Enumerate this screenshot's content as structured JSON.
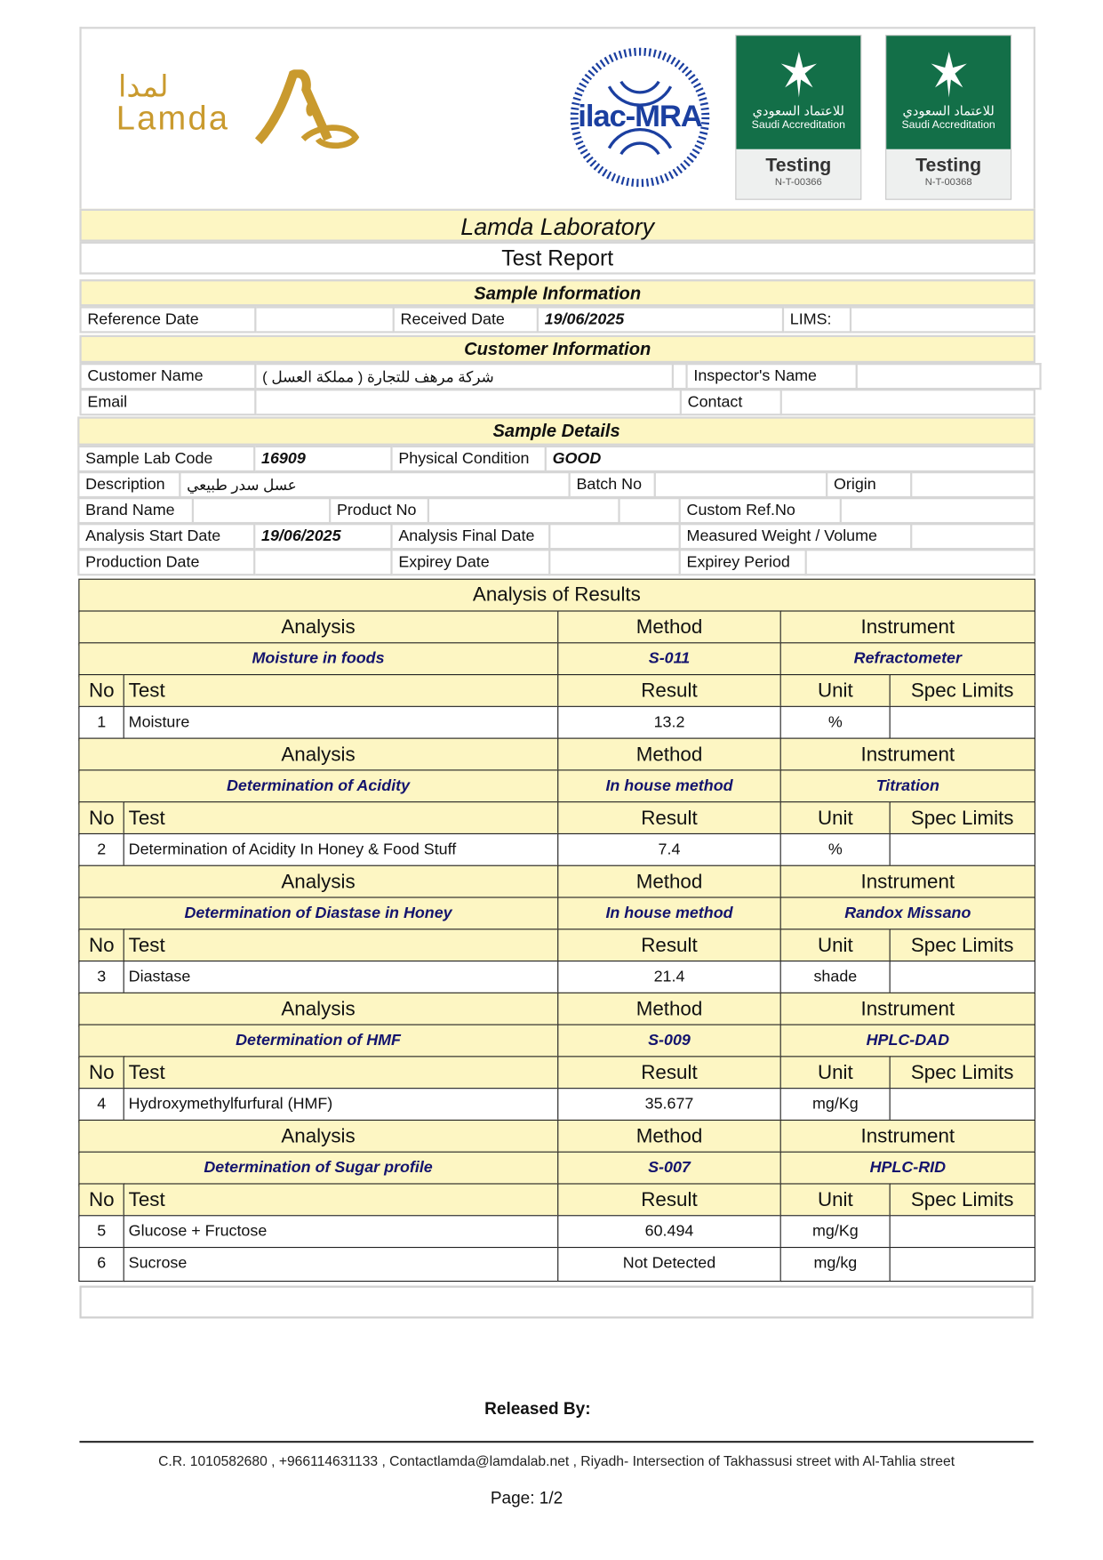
{
  "header": {
    "logo_text_en": "Lamda",
    "logo_text_ar": "لمدا",
    "ilac_text": "ilac-MRA",
    "badges": [
      {
        "arabic": "للاعتماد السعودي",
        "english": "Saudi Accreditation",
        "type": "Testing",
        "code": "N-T-00366"
      },
      {
        "arabic": "للاعتماد السعودي",
        "english": "Saudi Accreditation",
        "type": "Testing",
        "code": "N-T-00368"
      }
    ],
    "title": "Lamda Laboratory",
    "subtitle": "Test Report"
  },
  "colors": {
    "band": "#fdf6c3",
    "subject_text": "#14146e",
    "badge_green": "#136f48",
    "logo_gold": "#c99a2e"
  },
  "sample_information": {
    "heading": "Sample Information",
    "rows": [
      [
        "Reference Date",
        "",
        "Received Date",
        "19/06/2025",
        "LIMS:",
        ""
      ]
    ]
  },
  "customer_information": {
    "heading": "Customer Information",
    "rows": [
      [
        "Customer Name",
        "شركة مرهف للتجارة ( مملكة العسل )",
        "",
        "Inspector's Name",
        ""
      ],
      [
        "Email",
        "",
        "Contact",
        ""
      ]
    ]
  },
  "sample_details": {
    "heading": "Sample Details",
    "rows": [
      [
        "Sample Lab Code",
        "16909",
        "Physical Condition",
        "GOOD"
      ],
      [
        "Description",
        "عسل سدر طبيعي",
        "Batch No",
        "",
        "Origin",
        ""
      ],
      [
        "Brand Name",
        "",
        "Product No",
        "",
        "",
        "Custom Ref.No",
        ""
      ],
      [
        "Analysis Start Date",
        "19/06/2025",
        "Analysis Final Date",
        "",
        "Measured Weight / Volume",
        ""
      ],
      [
        "Production Date",
        "",
        "Expirey Date",
        "",
        "Expirey Period",
        ""
      ]
    ]
  },
  "results": {
    "heading": "Analysis of Results",
    "labels": {
      "analysis": "Analysis",
      "method": "Method",
      "instrument": "Instrument",
      "no": "No",
      "test": "Test",
      "result": "Result",
      "unit": "Unit",
      "spec": "Spec Limits"
    },
    "groups": [
      {
        "analysis": "Moisture in foods",
        "method": "S-011",
        "instrument": "Refractometer",
        "tests": [
          {
            "no": "1",
            "test": "Moisture",
            "result": "13.2",
            "unit": "%",
            "spec": ""
          }
        ]
      },
      {
        "analysis": "Determination  of  Acidity",
        "method": "In house method",
        "instrument": "Titration",
        "tests": [
          {
            "no": "2",
            "test": "Determination  of  Acidity In Honey & Food Stuff",
            "result": "7.4",
            "unit": "%",
            "spec": ""
          }
        ]
      },
      {
        "analysis": "Determination of  Diastase in Honey",
        "method": "In house method",
        "instrument": "Randox Missano",
        "tests": [
          {
            "no": "3",
            "test": "Diastase",
            "result": "21.4",
            "unit": "shade",
            "spec": ""
          }
        ]
      },
      {
        "analysis": "Determination of HMF",
        "method": "S-009",
        "instrument": "HPLC-DAD",
        "tests": [
          {
            "no": "4",
            "test": "Hydroxymethylfurfural (HMF)",
            "result": "35.677",
            "unit": "mg/Kg",
            "spec": ""
          }
        ]
      },
      {
        "analysis": "Determination of Sugar profile",
        "method": "S-007",
        "instrument": "HPLC-RID",
        "tests": [
          {
            "no": "5",
            "test": "Glucose + Fructose",
            "result": "60.494",
            "unit": "mg/Kg",
            "spec": ""
          },
          {
            "no": "6",
            "test": "Sucrose",
            "result": "Not Detected",
            "unit": "mg/kg",
            "spec": ""
          }
        ]
      }
    ]
  },
  "footer": {
    "released_by": "Released By:",
    "contact": "C.R. 1010582680 , +966114631133 , Contactlamda@lamdalab.net , Riyadh- Intersection of Takhassusi street with Al-Tahlia street",
    "page": "Page: 1/2"
  }
}
